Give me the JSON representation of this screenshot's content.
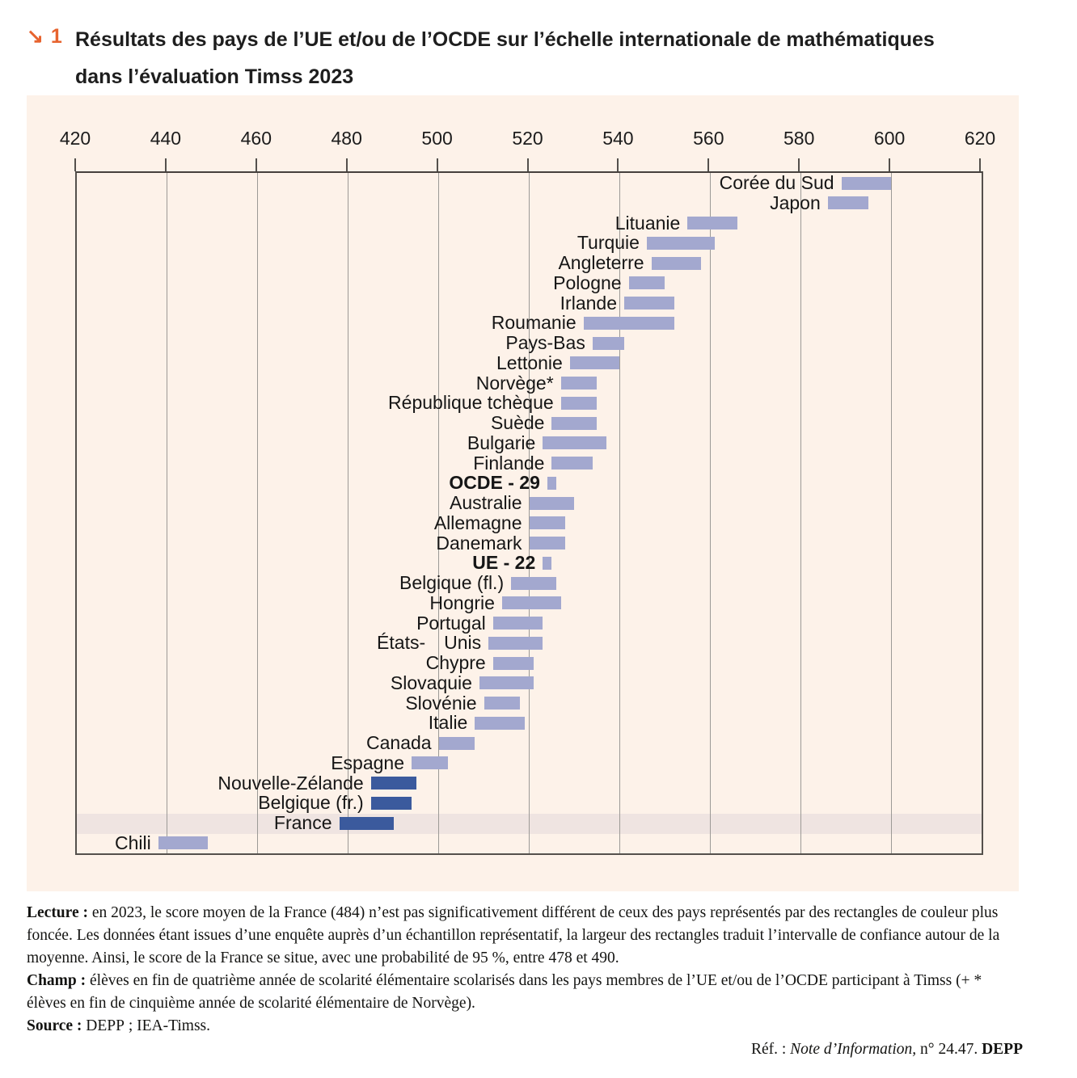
{
  "header": {
    "figure_marker_arrow": "↘",
    "figure_number": "1",
    "title_line1": "Résultats des pays de l’UE et/ou de l’OCDE sur l’échelle internationale de mathématiques",
    "title_line2": "dans l’évaluation Timss 2023"
  },
  "chart_data": {
    "type": "bar",
    "orientation": "horizontal",
    "title": "Résultats des pays de l’UE et/ou de l’OCDE sur l’échelle internationale de mathématiques dans l’évaluation Timss 2023",
    "value_meaning": "95% confidence interval of mean TIMSS 2023 mathematics score; bar left/right edges = interval bounds",
    "axis": {
      "position": "top",
      "min": 420,
      "max": 620,
      "tick_step": 20,
      "ticks": [
        420,
        440,
        460,
        480,
        500,
        520,
        540,
        560,
        580,
        600,
        620
      ],
      "grid": true
    },
    "colors": {
      "bar_default": "#a3a8cf",
      "bar_darker_not_sig_diff_from_france": "#3b5a9d",
      "france_row_band": "#efe4e1",
      "panel_background": "#fdf2e9",
      "accent_orange": "#e7632e"
    },
    "rows": [
      {
        "label": "Corée du Sud",
        "ci_low": 589,
        "ci_high": 600,
        "dark": false,
        "bold": false,
        "highlight_row": false
      },
      {
        "label": "Japon",
        "ci_low": 586,
        "ci_high": 595,
        "dark": false,
        "bold": false,
        "highlight_row": false
      },
      {
        "label": "Lituanie",
        "ci_low": 555,
        "ci_high": 566,
        "dark": false,
        "bold": false,
        "highlight_row": false
      },
      {
        "label": "Turquie",
        "ci_low": 546,
        "ci_high": 561,
        "dark": false,
        "bold": false,
        "highlight_row": false
      },
      {
        "label": "Angleterre",
        "ci_low": 547,
        "ci_high": 558,
        "dark": false,
        "bold": false,
        "highlight_row": false
      },
      {
        "label": "Pologne",
        "ci_low": 542,
        "ci_high": 550,
        "dark": false,
        "bold": false,
        "highlight_row": false
      },
      {
        "label": "Irlande",
        "ci_low": 541,
        "ci_high": 552,
        "dark": false,
        "bold": false,
        "highlight_row": false
      },
      {
        "label": "Roumanie",
        "ci_low": 532,
        "ci_high": 552,
        "dark": false,
        "bold": false,
        "highlight_row": false
      },
      {
        "label": "Pays-Bas",
        "ci_low": 534,
        "ci_high": 541,
        "dark": false,
        "bold": false,
        "highlight_row": false
      },
      {
        "label": "Lettonie",
        "ci_low": 529,
        "ci_high": 540,
        "dark": false,
        "bold": false,
        "highlight_row": false
      },
      {
        "label": "Norvège*",
        "ci_low": 527,
        "ci_high": 535,
        "dark": false,
        "bold": false,
        "highlight_row": false
      },
      {
        "label": "République tchèque",
        "ci_low": 527,
        "ci_high": 535,
        "dark": false,
        "bold": false,
        "highlight_row": false
      },
      {
        "label": "Suède",
        "ci_low": 525,
        "ci_high": 535,
        "dark": false,
        "bold": false,
        "highlight_row": false
      },
      {
        "label": "Bulgarie",
        "ci_low": 523,
        "ci_high": 537,
        "dark": false,
        "bold": false,
        "highlight_row": false
      },
      {
        "label": "Finlande",
        "ci_low": 525,
        "ci_high": 534,
        "dark": false,
        "bold": false,
        "highlight_row": false
      },
      {
        "label": "OCDE - 29",
        "ci_low": 524,
        "ci_high": 526,
        "dark": false,
        "bold": true,
        "highlight_row": false
      },
      {
        "label": "Australie",
        "ci_low": 520,
        "ci_high": 530,
        "dark": false,
        "bold": false,
        "highlight_row": false
      },
      {
        "label": "Allemagne",
        "ci_low": 520,
        "ci_high": 528,
        "dark": false,
        "bold": false,
        "highlight_row": false
      },
      {
        "label": "Danemark",
        "ci_low": 520,
        "ci_high": 528,
        "dark": false,
        "bold": false,
        "highlight_row": false
      },
      {
        "label": "UE - 22",
        "ci_low": 523,
        "ci_high": 525,
        "dark": false,
        "bold": true,
        "highlight_row": false
      },
      {
        "label": "Belgique (fl.)",
        "ci_low": 516,
        "ci_high": 526,
        "dark": false,
        "bold": false,
        "highlight_row": false
      },
      {
        "label": "Hongrie",
        "ci_low": 514,
        "ci_high": 527,
        "dark": false,
        "bold": false,
        "highlight_row": false
      },
      {
        "label": "Portugal",
        "ci_low": 512,
        "ci_high": 523,
        "dark": false,
        "bold": false,
        "highlight_row": false
      },
      {
        "label": "États- Unis",
        "ci_low": 511,
        "ci_high": 523,
        "dark": false,
        "bold": false,
        "highlight_row": false
      },
      {
        "label": "Chypre",
        "ci_low": 512,
        "ci_high": 521,
        "dark": false,
        "bold": false,
        "highlight_row": false
      },
      {
        "label": "Slovaquie",
        "ci_low": 509,
        "ci_high": 521,
        "dark": false,
        "bold": false,
        "highlight_row": false
      },
      {
        "label": "Slovénie",
        "ci_low": 510,
        "ci_high": 518,
        "dark": false,
        "bold": false,
        "highlight_row": false
      },
      {
        "label": "Italie",
        "ci_low": 508,
        "ci_high": 519,
        "dark": false,
        "bold": false,
        "highlight_row": false
      },
      {
        "label": "Canada",
        "ci_low": 500,
        "ci_high": 508,
        "dark": false,
        "bold": false,
        "highlight_row": false
      },
      {
        "label": "Espagne",
        "ci_low": 494,
        "ci_high": 502,
        "dark": false,
        "bold": false,
        "highlight_row": false
      },
      {
        "label": "Nouvelle-Zélande",
        "ci_low": 485,
        "ci_high": 495,
        "dark": true,
        "bold": false,
        "highlight_row": false
      },
      {
        "label": "Belgique (fr.)",
        "ci_low": 485,
        "ci_high": 494,
        "dark": true,
        "bold": false,
        "highlight_row": false
      },
      {
        "label": "France",
        "ci_low": 478,
        "ci_high": 490,
        "dark": true,
        "bold": false,
        "highlight_row": true
      },
      {
        "label": "Chili",
        "ci_low": 438,
        "ci_high": 449,
        "dark": false,
        "bold": false,
        "highlight_row": false
      }
    ]
  },
  "footer": {
    "lecture_label": "Lecture :",
    "lecture_text": " en 2023, le score moyen de la France (484) n’est pas significativement différent de ceux des pays représentés par des rectangles de couleur plus foncée. Les données étant issues d’une enquête auprès d’un échantillon représentatif, la largeur des rectangles traduit l’intervalle de confiance autour de la moyenne. Ainsi, le score de la France se situe, avec une probabilité de 95 %, entre 478 et 490.",
    "champ_label": "Champ :",
    "champ_text": " élèves en fin de quatrième année de scolarité élémentaire scolarisés dans les pays membres de l’UE et/ou de l’OCDE participant à Timss (+ * élèves en fin de cinquième année de scolarité élémentaire de Norvège).",
    "source_label": "Source :",
    "source_text": " DEPP ; IEA-Timss.",
    "ref_prefix": "Réf. : ",
    "ref_italic": "Note d’Information,",
    "ref_mid": " n° 24.47. ",
    "ref_depp": "DEPP"
  }
}
